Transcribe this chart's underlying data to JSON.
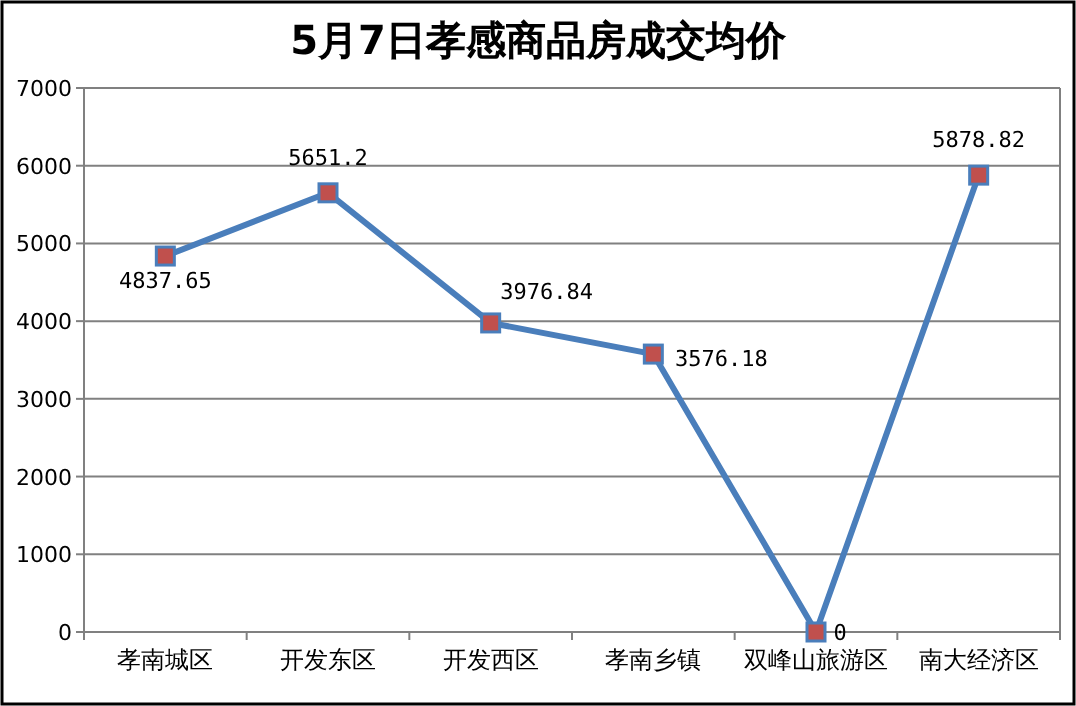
{
  "chart_data": {
    "type": "line",
    "title": "5月7日孝感商品房成交均价",
    "categories": [
      "孝南城区",
      "开发东区",
      "开发西区",
      "孝南乡镇",
      "双峰山旅游区",
      "南大经济区"
    ],
    "series": [
      {
        "color": "#4a7ebb",
        "values": [
          4837.65,
          5651.2,
          3976.84,
          3576.18,
          0,
          5878.82
        ]
      }
    ],
    "ylim": [
      0,
      7000
    ],
    "yticks": [
      0,
      1000,
      2000,
      3000,
      4000,
      5000,
      6000,
      7000
    ],
    "grid": "y",
    "marker": "square",
    "line_style": "solid",
    "data_labels": true
  }
}
